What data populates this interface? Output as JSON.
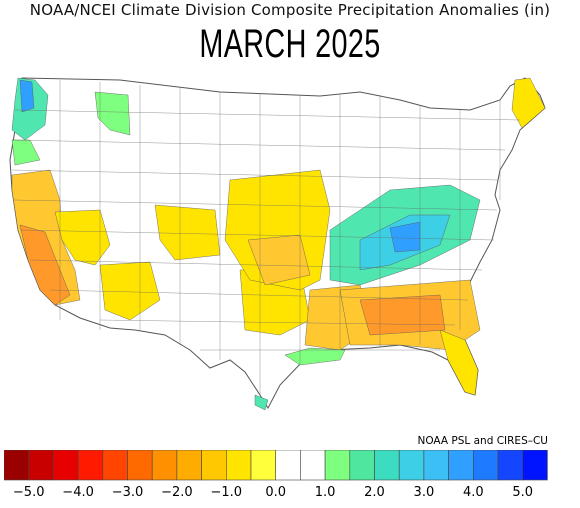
{
  "header": {
    "title": "NOAA/NCEI Climate Division Composite Precipitation Anomalies (in)",
    "subtitle": "MARCH 2025"
  },
  "credit": "NOAA PSL and CIRES–CU",
  "legend": {
    "colors": [
      "#9b0000",
      "#c80000",
      "#e60000",
      "#ff1a00",
      "#ff4500",
      "#ff6a00",
      "#ff9000",
      "#ffac00",
      "#ffc800",
      "#ffe400",
      "#ffff3c",
      "#ffffff",
      "#ffffff",
      "#7fff7f",
      "#4fe6a0",
      "#3cdcc0",
      "#3ccfe6",
      "#3cbff5",
      "#2fa0ff",
      "#1e7aff",
      "#1446ff",
      "#0014ff"
    ],
    "ticks": [
      "−5.0",
      "−4.0",
      "−3.0",
      "−2.0",
      "−1.0",
      "0.0",
      "1.0",
      "2.0",
      "3.0",
      "4.0",
      "5.0"
    ],
    "tick_values": [
      -5,
      -4,
      -3,
      -2,
      -1,
      0,
      1,
      2,
      3,
      4,
      5
    ]
  },
  "map": {
    "region": "Contiguous United States climate divisions",
    "anomaly_classes": {
      "dry_moderate": "#ff9a2a",
      "dry_light": "#ffc830",
      "dry_slight": "#ffe400",
      "wet_slight": "#7fff7f",
      "wet_light": "#4fe6b0",
      "wet_moderate": "#3ccfe6",
      "wet_strong": "#2fa0ff",
      "neutral": "#ffffff"
    }
  }
}
